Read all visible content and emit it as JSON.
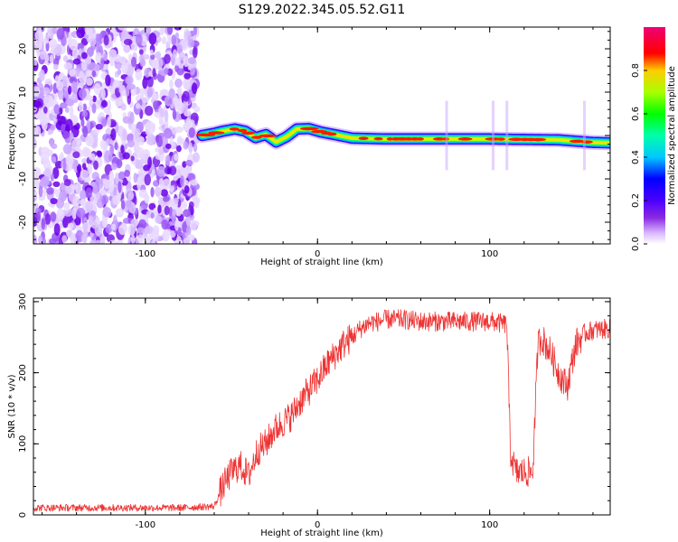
{
  "title": "S129.2022.345.05.52.G11",
  "chart_data": [
    {
      "type": "heatmap",
      "xlabel": "Height of straight line (km)",
      "ylabel": "Frequency (Hz)",
      "xlim": [
        -165,
        170
      ],
      "ylim": [
        -25,
        25
      ],
      "x_ticks": [
        -100,
        0,
        100
      ],
      "y_ticks": [
        -20,
        -10,
        0,
        10,
        20
      ],
      "colorbar": {
        "label": "Normalized spectral amplitude",
        "ticks": [
          "0.0",
          "0.2",
          "0.4",
          "0.6",
          "0.8"
        ],
        "range": [
          0,
          1
        ]
      },
      "noise_region_x": [
        -165,
        -70
      ],
      "ridge": [
        {
          "x": -67,
          "freq": 0.0
        },
        {
          "x": -60,
          "freq": 0.5
        },
        {
          "x": -55,
          "freq": 1.0
        },
        {
          "x": -48,
          "freq": 1.5
        },
        {
          "x": -42,
          "freq": 1.0
        },
        {
          "x": -36,
          "freq": -0.5
        },
        {
          "x": -30,
          "freq": 0.2
        },
        {
          "x": -24,
          "freq": -1.5
        },
        {
          "x": -18,
          "freq": -0.3
        },
        {
          "x": -12,
          "freq": 1.5
        },
        {
          "x": -5,
          "freq": 1.6
        },
        {
          "x": 2,
          "freq": 0.8
        },
        {
          "x": 10,
          "freq": 0.2
        },
        {
          "x": 20,
          "freq": -0.6
        },
        {
          "x": 40,
          "freq": -0.8
        },
        {
          "x": 60,
          "freq": -0.8
        },
        {
          "x": 80,
          "freq": -0.8
        },
        {
          "x": 100,
          "freq": -0.8
        },
        {
          "x": 120,
          "freq": -0.9
        },
        {
          "x": 140,
          "freq": -1.0
        },
        {
          "x": 160,
          "freq": -1.6
        },
        {
          "x": 170,
          "freq": -1.7
        }
      ]
    },
    {
      "type": "line",
      "xlabel": "Height of straight line (km)",
      "ylabel": "SNR (10 * v/v)",
      "xlim": [
        -165,
        170
      ],
      "ylim": [
        0,
        305
      ],
      "x_ticks": [
        -100,
        0,
        100
      ],
      "y_ticks": [
        0,
        100,
        200,
        300
      ],
      "color": "#ee3333",
      "series": [
        {
          "x": [
            -165,
            -140,
            -110,
            -80,
            -60,
            -55,
            -50,
            -45,
            -40,
            -35,
            -30,
            -25,
            -20,
            -15,
            -10,
            -5,
            0,
            5,
            10,
            15,
            20,
            25,
            30,
            35,
            40,
            50,
            60,
            70,
            80,
            90,
            100,
            105,
            110,
            112,
            115,
            120,
            125,
            128,
            130,
            135,
            140,
            145,
            150,
            155,
            160,
            170
          ],
          "y": [
            10,
            10,
            10,
            10,
            12,
            40,
            60,
            70,
            55,
            90,
            100,
            120,
            130,
            140,
            160,
            175,
            190,
            210,
            225,
            240,
            250,
            262,
            270,
            272,
            275,
            275,
            272,
            272,
            272,
            272,
            272,
            270,
            268,
            90,
            60,
            60,
            60,
            240,
            250,
            230,
            200,
            180,
            240,
            255,
            260,
            262
          ]
        }
      ]
    }
  ]
}
